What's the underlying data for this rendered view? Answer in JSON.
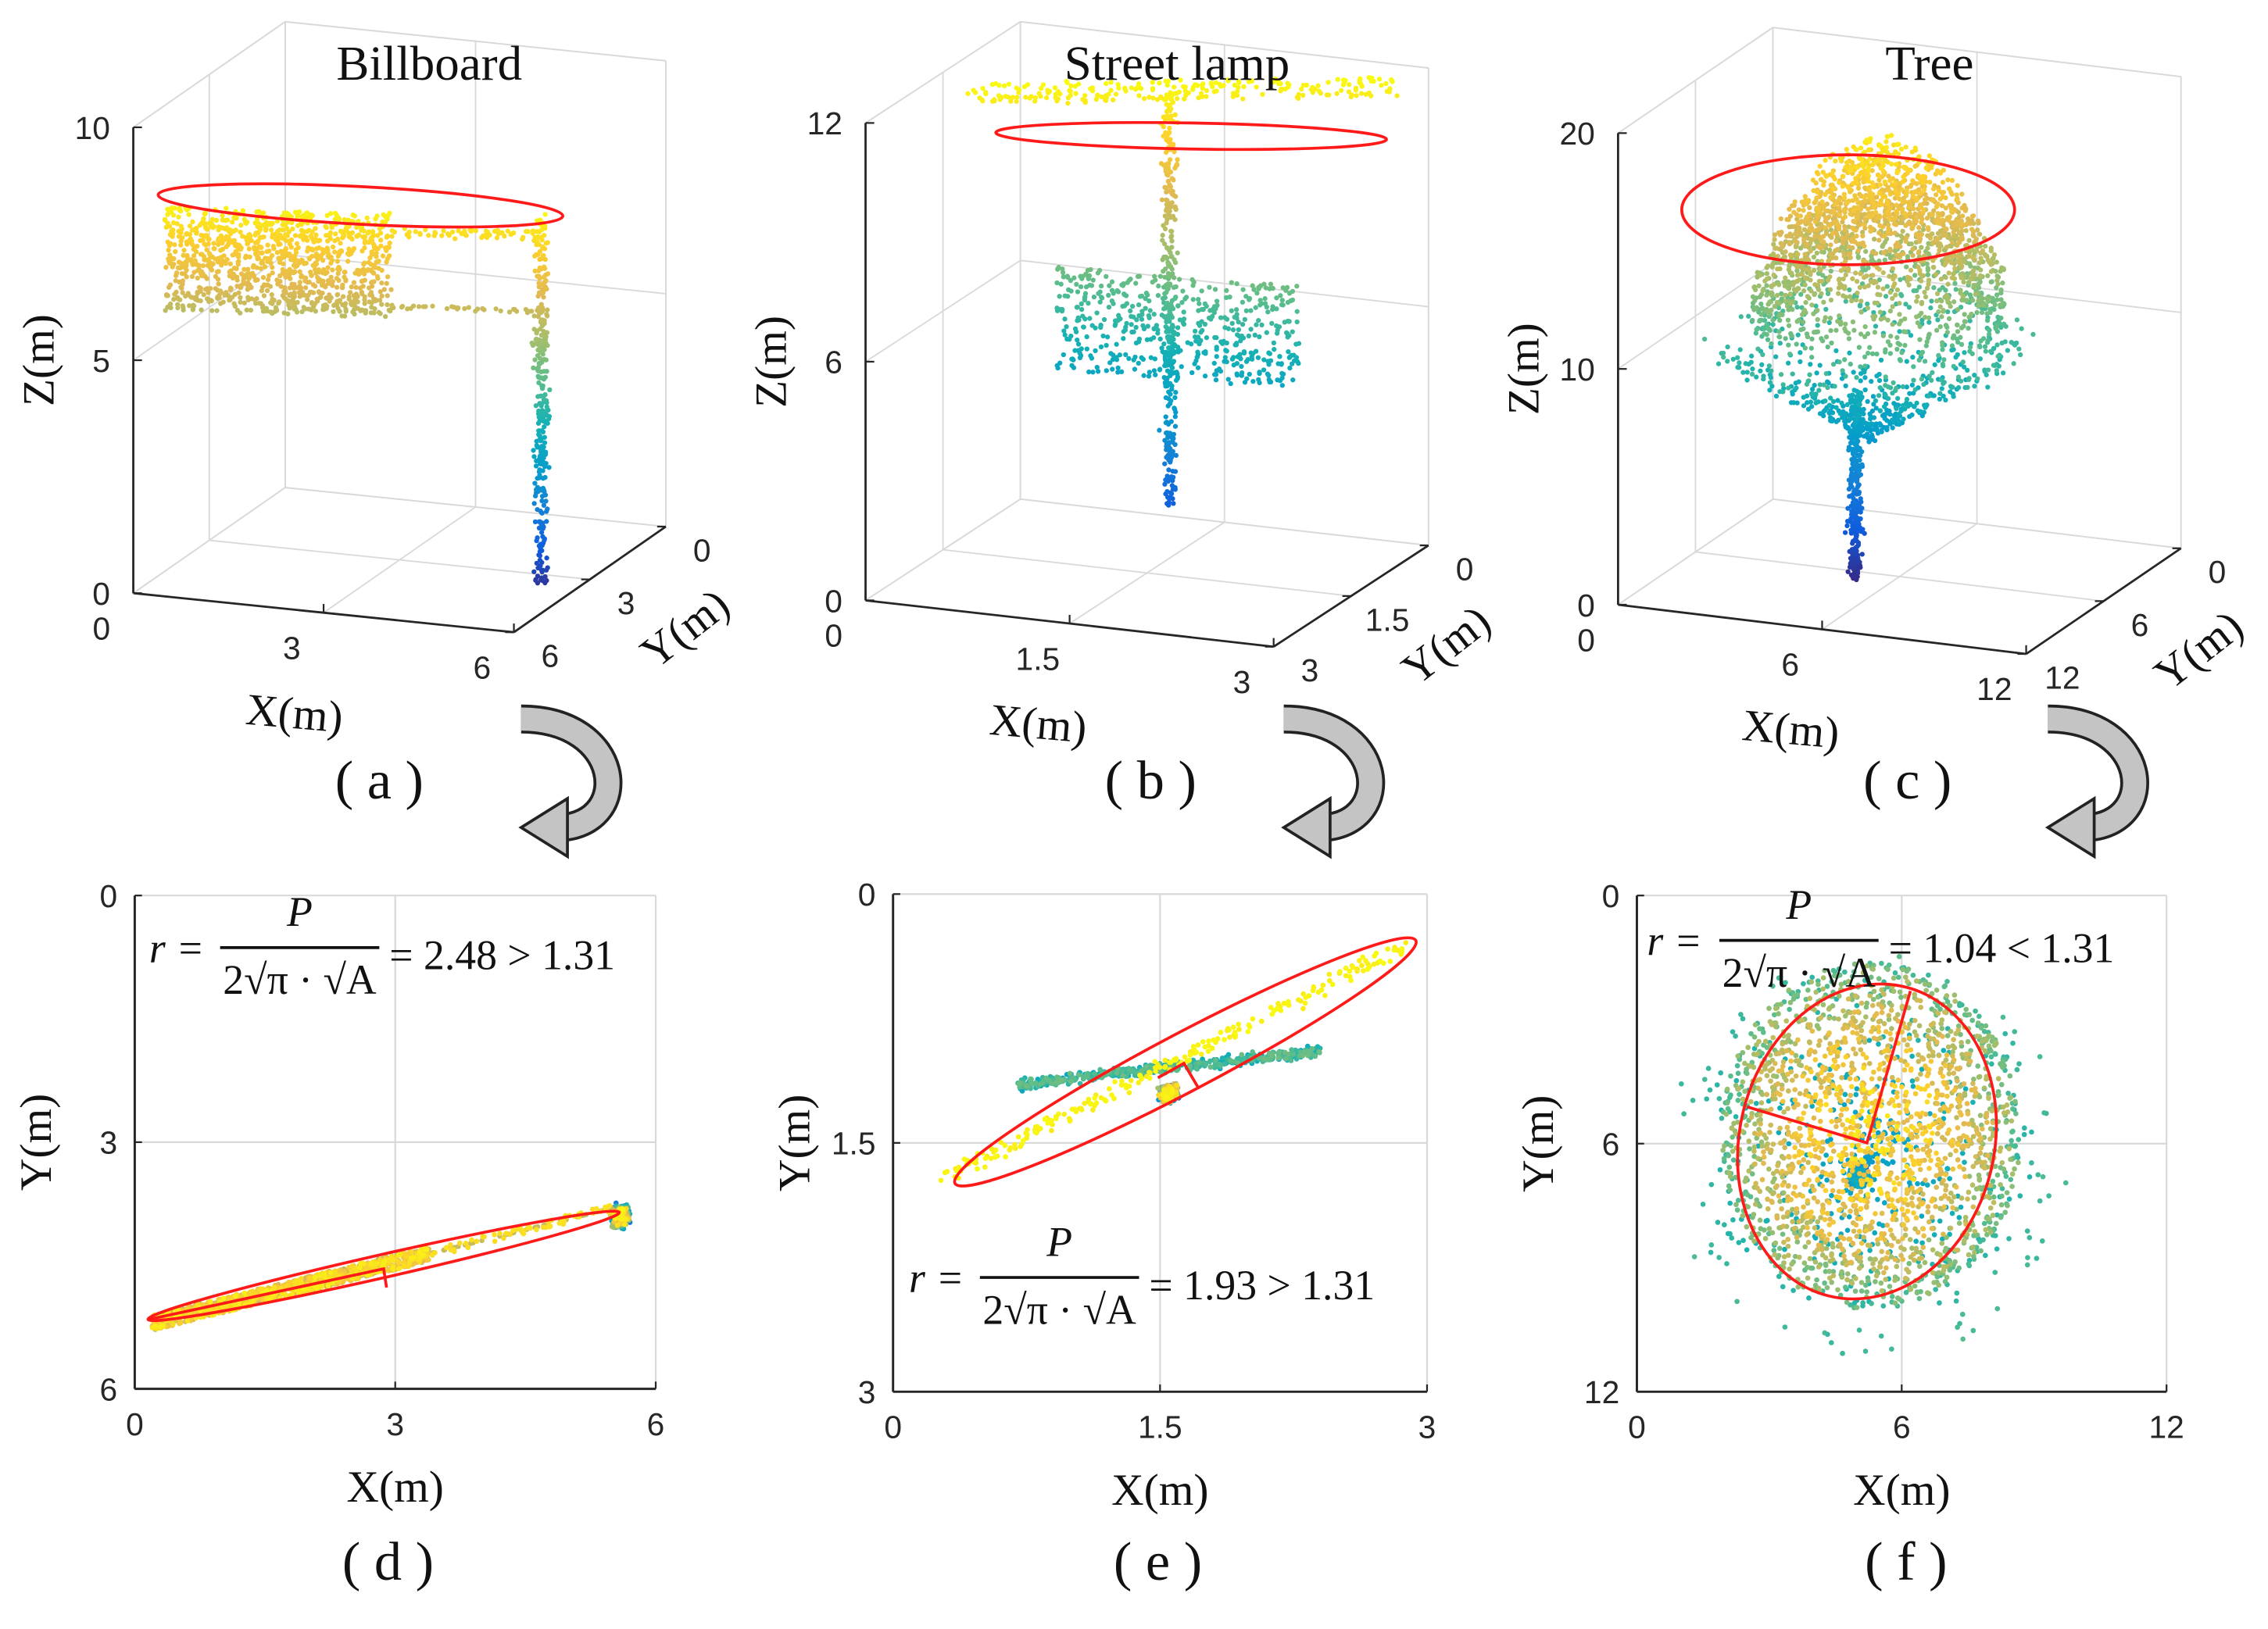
{
  "chart_data": [
    {
      "id": "a",
      "type": "scatter3d",
      "title": "Billboard",
      "panel_label": "( a )",
      "xlabel": "X(m)",
      "ylabel": "Y(m)",
      "zlabel": "Z(m)",
      "xlim": [
        0,
        6
      ],
      "ylim": [
        0,
        6
      ],
      "zlim": [
        0,
        10
      ],
      "xticks": [
        "0",
        "3",
        "6"
      ],
      "yticks": [
        "0",
        "3",
        "6"
      ],
      "zticks": [
        "0",
        "5",
        "10"
      ],
      "xtick_values": [
        0,
        3,
        6
      ],
      "ytick_values": [
        0,
        3,
        6
      ],
      "ztick_values": [
        0,
        5,
        10
      ],
      "object": "billboard",
      "highlight": "red ellipse around top layer",
      "grid": true
    },
    {
      "id": "b",
      "type": "scatter3d",
      "title": "Street lamp",
      "panel_label": "( b )",
      "xlabel": "X(m)",
      "ylabel": "Y(m)",
      "zlabel": "Z(m)",
      "xlim": [
        0,
        3
      ],
      "ylim": [
        0,
        3
      ],
      "zlim": [
        0,
        12
      ],
      "xticks": [
        "0",
        "1.5",
        "3"
      ],
      "yticks": [
        "0",
        "1.5",
        "3"
      ],
      "zticks": [
        "0",
        "6",
        "12"
      ],
      "xtick_values": [
        0,
        1.5,
        3
      ],
      "ytick_values": [
        0,
        1.5,
        3
      ],
      "ztick_values": [
        0,
        6,
        12
      ],
      "object": "streetlamp",
      "highlight": "red ellipse around top layer",
      "grid": true
    },
    {
      "id": "c",
      "type": "scatter3d",
      "title": "Tree",
      "panel_label": "( c )",
      "xlabel": "X(m)",
      "ylabel": "Y(m)",
      "zlabel": "Z(m)",
      "xlim": [
        0,
        12
      ],
      "ylim": [
        0,
        12
      ],
      "zlim": [
        0,
        20
      ],
      "xticks": [
        "0",
        "6",
        "12"
      ],
      "yticks": [
        "0",
        "6",
        "12"
      ],
      "zticks": [
        "0",
        "10",
        "20"
      ],
      "xtick_values": [
        0,
        6,
        12
      ],
      "ytick_values": [
        0,
        6,
        12
      ],
      "ztick_values": [
        0,
        10,
        20
      ],
      "object": "tree",
      "highlight": "red ellipse around top layer",
      "grid": true
    },
    {
      "id": "d",
      "type": "scatter",
      "panel_label": "( d )",
      "xlabel": "X(m)",
      "ylabel": "Y(m)",
      "xlim": [
        0,
        6
      ],
      "ylim": [
        0,
        6
      ],
      "xticks": [
        "0",
        "3",
        "6"
      ],
      "yticks": [
        "0",
        "3",
        "6"
      ],
      "xtick_values": [
        0,
        3,
        6
      ],
      "ytick_values": [
        0,
        3,
        6
      ],
      "object": "billboard",
      "formula": {
        "lhs": "r =",
        "numerator": "P",
        "denominator": "2√π · √A",
        "result": "= 2.48 > 1.31"
      },
      "r_value": 2.48,
      "threshold": 1.31,
      "grid": true
    },
    {
      "id": "e",
      "type": "scatter",
      "panel_label": "( e )",
      "xlabel": "X(m)",
      "ylabel": "Y(m)",
      "xlim": [
        0,
        3
      ],
      "ylim": [
        0,
        3
      ],
      "xticks": [
        "0",
        "1.5",
        "3"
      ],
      "yticks": [
        "0",
        "1.5",
        "3"
      ],
      "xtick_values": [
        0,
        1.5,
        3
      ],
      "ytick_values": [
        0,
        1.5,
        3
      ],
      "object": "streetlamp",
      "formula": {
        "lhs": "r =",
        "numerator": "P",
        "denominator": "2√π · √A",
        "result": "= 1.93 > 1.31"
      },
      "r_value": 1.93,
      "threshold": 1.31,
      "grid": true
    },
    {
      "id": "f",
      "type": "scatter",
      "panel_label": "( f )",
      "xlabel": "X(m)",
      "ylabel": "Y(m)",
      "xlim": [
        0,
        12
      ],
      "ylim": [
        0,
        12
      ],
      "xticks": [
        "0",
        "6",
        "12"
      ],
      "yticks": [
        "0",
        "6",
        "12"
      ],
      "xtick_values": [
        0,
        6,
        12
      ],
      "ytick_values": [
        0,
        6,
        12
      ],
      "object": "tree",
      "formula": {
        "lhs": "r =",
        "numerator": "P",
        "denominator": "2√π · √A",
        "result": "= 1.04 < 1.31"
      },
      "r_value": 1.04,
      "threshold": 1.31,
      "grid": true
    }
  ],
  "colors": {
    "ellipse": "#ff1a1a",
    "axis": "#262626",
    "grid": "#d9d9d9",
    "arrow_fill": "#c4c4c4",
    "arrow_edge": "#222222",
    "colormap": [
      "#352a87",
      "#0f5cdd",
      "#1481d6",
      "#069fc9",
      "#15b1b4",
      "#59bd8c",
      "#a5be6b",
      "#e1b952",
      "#fcce2e",
      "#f9fb0e"
    ]
  }
}
